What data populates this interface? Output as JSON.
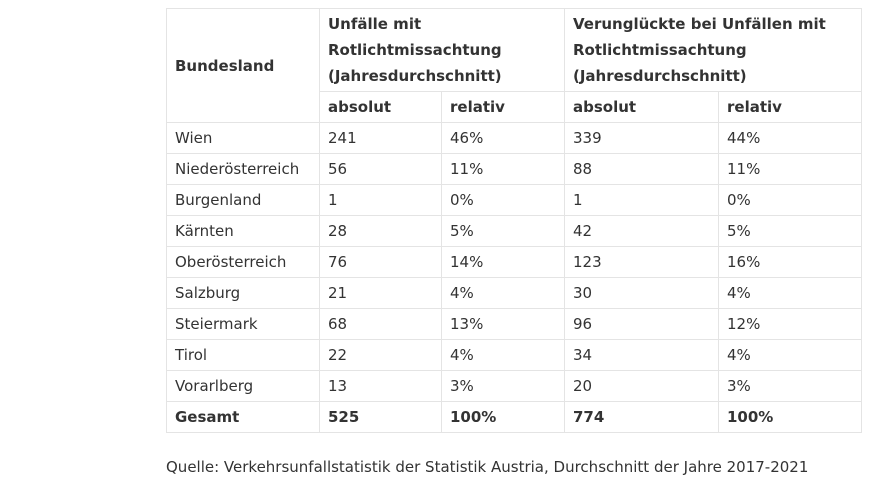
{
  "table": {
    "header": {
      "region": "Bundesland",
      "groups": [
        {
          "title": [
            "Unfälle mit",
            "Rotlichtmissachtung",
            "(Jahresdurchschnitt)"
          ],
          "columns": [
            "absolut",
            "relativ"
          ]
        },
        {
          "title": [
            "Verunglückte bei Unfällen mit",
            "Rotlichtmissachtung",
            "(Jahresdurchschnitt)"
          ],
          "columns": [
            "absolut",
            "relativ"
          ]
        }
      ]
    },
    "rows": [
      [
        "Wien",
        "241",
        "46%",
        "339",
        "44%"
      ],
      [
        "Niederösterreich",
        "56",
        "11%",
        "88",
        "11%"
      ],
      [
        "Burgenland",
        "1",
        "0%",
        "1",
        "0%"
      ],
      [
        "Kärnten",
        "28",
        "5%",
        "42",
        "5%"
      ],
      [
        "Oberösterreich",
        "76",
        "14%",
        "123",
        "16%"
      ],
      [
        "Salzburg",
        "21",
        "4%",
        "30",
        "4%"
      ],
      [
        "Steiermark",
        "68",
        "13%",
        "96",
        "12%"
      ],
      [
        "Tirol",
        "22",
        "4%",
        "34",
        "4%"
      ],
      [
        "Vorarlberg",
        "13",
        "3%",
        "20",
        "3%"
      ]
    ],
    "total": [
      "Gesamt",
      "525",
      "100%",
      "774",
      "100%"
    ]
  },
  "source": "Quelle: Verkehrsunfallstatistik der Statistik Austria, Durchschnitt der Jahre 2017-2021"
}
